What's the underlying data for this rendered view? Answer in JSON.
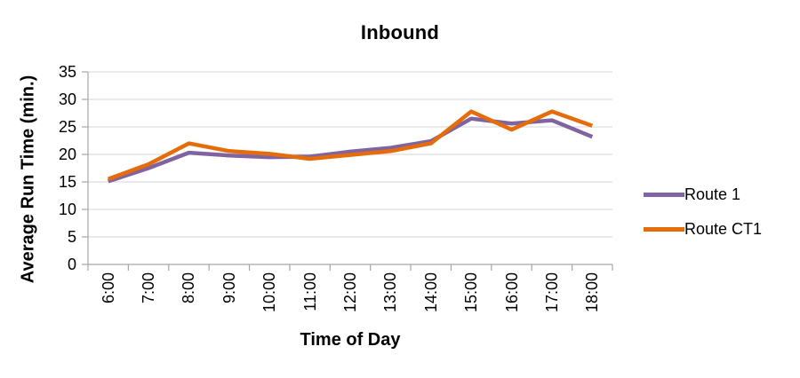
{
  "chart_data": {
    "type": "line",
    "title": "Inbound",
    "xlabel": "Time of Day",
    "ylabel": "Average Run Time (min.)",
    "categories": [
      "6:00",
      "7:00",
      "8:00",
      "9:00",
      "10:00",
      "11:00",
      "12:00",
      "13:00",
      "14:00",
      "15:00",
      "16:00",
      "17:00",
      "18:00"
    ],
    "series": [
      {
        "name": "Route 1",
        "color": "#8064A2",
        "values": [
          15.1,
          17.5,
          20.3,
          19.8,
          19.5,
          19.6,
          20.5,
          21.2,
          22.4,
          26.5,
          25.6,
          26.2,
          23.2
        ]
      },
      {
        "name": "Route CT1",
        "color": "#E46C0A",
        "values": [
          15.5,
          18.2,
          22.0,
          20.6,
          20.1,
          19.2,
          19.9,
          20.6,
          22.0,
          27.8,
          24.5,
          27.8,
          25.2
        ]
      }
    ],
    "ylim": [
      0,
      35
    ],
    "yticks": [
      0,
      5,
      10,
      15,
      20,
      25,
      30,
      35
    ],
    "grid": true,
    "legend_position": "right"
  },
  "colors": {
    "background": "#FFFFFF",
    "gridline": "#D4D4D4",
    "axis": "#A6A6A6",
    "text": "#000000",
    "series_route_1": "#8064A2",
    "series_route_ct1": "#E46C0A"
  }
}
